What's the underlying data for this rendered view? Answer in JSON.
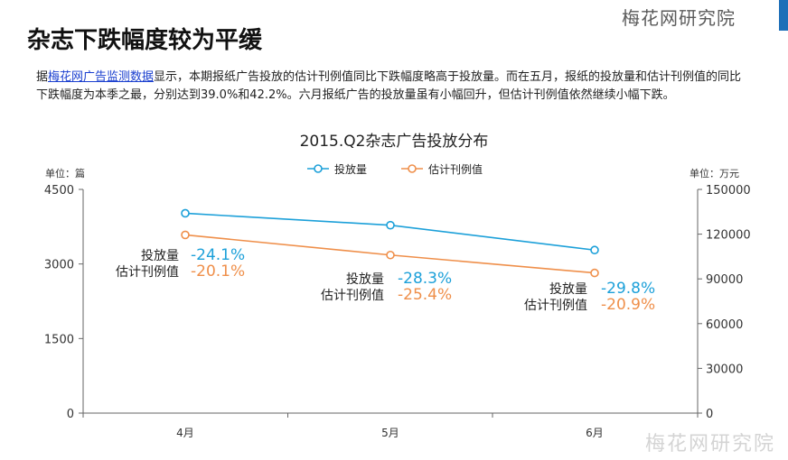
{
  "header": {
    "brand": "梅花网研究院",
    "title": "杂志下跌幅度较为平缓"
  },
  "paragraph": {
    "prefix": "据",
    "link": "梅花网广告监测数据",
    "text": "显示，本期报纸广告投放的估计刊例值同比下跌幅度略高于投放量。而在五月，报纸的投放量和估计刊例值的同比下跌幅度为本季之最，分别达到39.0%和42.2%。六月报纸广告的投放量虽有小幅回升，但估计刊例值依然继续小幅下跌。"
  },
  "watermark": "梅花网研究院",
  "colors": {
    "volume": "#1ca0d9",
    "value": "#ef8f4a",
    "axis": "#333333",
    "brand": "#1d6fb8"
  },
  "chart_data": {
    "type": "line",
    "title": "2015.Q2杂志广告投放分布",
    "categories": [
      "4月",
      "5月",
      "6月"
    ],
    "left_axis": {
      "unit": "单位：篇",
      "range": [
        0,
        4500
      ],
      "ticks": [
        "0",
        "1500",
        "3000",
        "4500"
      ]
    },
    "right_axis": {
      "unit": "单位：万元",
      "range": [
        0,
        150000
      ],
      "ticks": [
        "0",
        "30000",
        "60000",
        "90000",
        "120000",
        "150000"
      ]
    },
    "legend_position": "top-center",
    "series": [
      {
        "name": "投放量",
        "axis": "left",
        "values": [
          4020,
          3780,
          3280
        ],
        "color": "#1ca0d9"
      },
      {
        "name": "估计刊例值",
        "axis": "right",
        "values": [
          119500,
          106000,
          94000
        ],
        "color": "#ef8f4a"
      }
    ],
    "annotations": [
      {
        "label1": "投放量",
        "label2": "估计刊例值",
        "pct1": "-24.1%",
        "pct2": "-20.1%"
      },
      {
        "label1": "投放量",
        "label2": "估计刊例值",
        "pct1": "-28.3%",
        "pct2": "-25.4%"
      },
      {
        "label1": "投放量",
        "label2": "估计刊例值",
        "pct1": "-29.8%",
        "pct2": "-20.9%"
      }
    ]
  }
}
